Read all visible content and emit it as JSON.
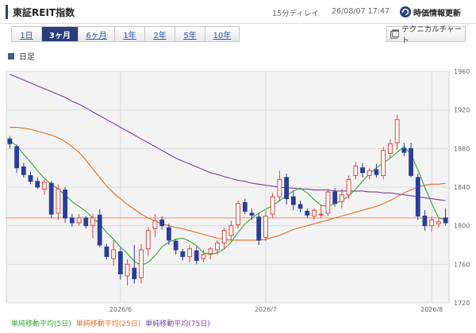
{
  "header": {
    "title": "東証REIT指数",
    "delay": "15分ディレイ",
    "datetime": "26/08/07 17:47",
    "refresh_label": "時価情報更新"
  },
  "range_tabs": [
    {
      "label": "1日",
      "active": false
    },
    {
      "label": "3ヶ月",
      "active": true
    },
    {
      "label": "6ヶ月",
      "active": false
    },
    {
      "label": "1年",
      "active": false
    },
    {
      "label": "2年",
      "active": false
    },
    {
      "label": "5年",
      "active": false
    },
    {
      "label": "10年",
      "active": false
    }
  ],
  "tech_chart_label": "テクニカルチャート",
  "period_label": "日足",
  "moving_average_legend": [
    {
      "label": "単純移動平均(5日)",
      "color": "#33aa33"
    },
    {
      "label": "単純移動平均(25日)",
      "color": "#e07020"
    },
    {
      "label": "単純移動平均(75日)",
      "color": "#7a3d9e"
    }
  ],
  "chart_data": {
    "type": "candlestick",
    "ylim": [
      1720,
      1960
    ],
    "y_ticks": [
      1720,
      1760,
      1800,
      1840,
      1880,
      1920,
      1960
    ],
    "x_labels": [
      {
        "label": "2026/6",
        "index": 16
      },
      {
        "label": "2026/7",
        "index": 37
      },
      {
        "label": "2026/8",
        "index": 61
      }
    ],
    "reference_line": 1808,
    "candles": [
      [
        1890,
        1893,
        1880,
        1885
      ],
      [
        1882,
        1884,
        1855,
        1860
      ],
      [
        1861,
        1865,
        1850,
        1853
      ],
      [
        1852,
        1856,
        1843,
        1846
      ],
      [
        1846,
        1850,
        1838,
        1840
      ],
      [
        1838,
        1848,
        1832,
        1845
      ],
      [
        1844,
        1846,
        1808,
        1812
      ],
      [
        1813,
        1843,
        1806,
        1838
      ],
      [
        1837,
        1840,
        1803,
        1808
      ],
      [
        1808,
        1812,
        1799,
        1803
      ],
      [
        1803,
        1812,
        1800,
        1808
      ],
      [
        1808,
        1810,
        1797,
        1800
      ],
      [
        1800,
        1812,
        1787,
        1808
      ],
      [
        1811,
        1817,
        1778,
        1780
      ],
      [
        1778,
        1781,
        1765,
        1768
      ],
      [
        1766,
        1785,
        1758,
        1775
      ],
      [
        1773,
        1777,
        1744,
        1750
      ],
      [
        1748,
        1765,
        1738,
        1760
      ],
      [
        1756,
        1780,
        1740,
        1745
      ],
      [
        1746,
        1781,
        1740,
        1775
      ],
      [
        1776,
        1799,
        1769,
        1795
      ],
      [
        1797,
        1812,
        1788,
        1805
      ],
      [
        1806,
        1810,
        1796,
        1800
      ],
      [
        1798,
        1802,
        1780,
        1785
      ],
      [
        1784,
        1786,
        1770,
        1775
      ],
      [
        1773,
        1776,
        1764,
        1768
      ],
      [
        1768,
        1780,
        1762,
        1776
      ],
      [
        1774,
        1778,
        1760,
        1764
      ],
      [
        1766,
        1775,
        1762,
        1770
      ],
      [
        1771,
        1778,
        1765,
        1776
      ],
      [
        1775,
        1785,
        1770,
        1782
      ],
      [
        1782,
        1798,
        1775,
        1795
      ],
      [
        1790,
        1805,
        1785,
        1800
      ],
      [
        1801,
        1826,
        1797,
        1823
      ],
      [
        1824,
        1828,
        1812,
        1815
      ],
      [
        1813,
        1818,
        1806,
        1811
      ],
      [
        1809,
        1813,
        1780,
        1785
      ],
      [
        1788,
        1815,
        1784,
        1810
      ],
      [
        1812,
        1834,
        1808,
        1830
      ],
      [
        1830,
        1857,
        1825,
        1848
      ],
      [
        1850,
        1854,
        1822,
        1828
      ],
      [
        1830,
        1836,
        1816,
        1822
      ],
      [
        1822,
        1826,
        1814,
        1818
      ],
      [
        1815,
        1818,
        1808,
        1811
      ],
      [
        1810,
        1818,
        1806,
        1816
      ],
      [
        1812,
        1822,
        1808,
        1812
      ],
      [
        1813,
        1838,
        1810,
        1835
      ],
      [
        1835,
        1839,
        1820,
        1823
      ],
      [
        1825,
        1838,
        1818,
        1832
      ],
      [
        1832,
        1852,
        1828,
        1848
      ],
      [
        1852,
        1866,
        1848,
        1862
      ],
      [
        1860,
        1865,
        1850,
        1855
      ],
      [
        1852,
        1860,
        1848,
        1857
      ],
      [
        1858,
        1864,
        1850,
        1853
      ],
      [
        1852,
        1882,
        1848,
        1878
      ],
      [
        1875,
        1890,
        1870,
        1885
      ],
      [
        1886,
        1915,
        1878,
        1910
      ],
      [
        1880,
        1886,
        1872,
        1876
      ],
      [
        1880,
        1886,
        1850,
        1852
      ],
      [
        1850,
        1854,
        1806,
        1810
      ],
      [
        1810,
        1816,
        1795,
        1800
      ],
      [
        1800,
        1810,
        1794,
        1806
      ],
      [
        1802,
        1808,
        1798,
        1804
      ],
      [
        1808,
        1818,
        1800,
        1803
      ]
    ],
    "ma5": [
      1888,
      1883,
      1874,
      1866,
      1857,
      1849,
      1843,
      1838,
      1832,
      1825,
      1820,
      1815,
      1808,
      1802,
      1793,
      1786,
      1778,
      1771,
      1763,
      1759,
      1762,
      1769,
      1778,
      1783,
      1786,
      1787,
      1784,
      1779,
      1772,
      1770,
      1772,
      1776,
      1783,
      1793,
      1802,
      1808,
      1813,
      1817,
      1821,
      1826,
      1831,
      1836,
      1839,
      1834,
      1827,
      1821,
      1820,
      1823,
      1826,
      1831,
      1838,
      1846,
      1854,
      1860,
      1865,
      1870,
      1876,
      1882,
      1874,
      1858,
      1840,
      1823,
      1808,
      1806
    ],
    "ma25": [
      1902,
      1902,
      1901,
      1900,
      1898,
      1896,
      1894,
      1891,
      1887,
      1882,
      1876,
      1868,
      1859,
      1850,
      1841,
      1834,
      1828,
      1822,
      1817,
      1812,
      1808,
      1805,
      1802,
      1800,
      1798,
      1797,
      1795,
      1793,
      1791,
      1789,
      1787,
      1786,
      1785,
      1785,
      1785,
      1785,
      1785,
      1786,
      1788,
      1790,
      1793,
      1796,
      1798,
      1800,
      1802,
      1804,
      1806,
      1808,
      1810,
      1812,
      1814,
      1816,
      1818,
      1820,
      1823,
      1826,
      1830,
      1834,
      1837,
      1840,
      1842,
      1843,
      1843,
      1844
    ],
    "ma75": [
      1957,
      1954,
      1951,
      1948,
      1945,
      1942,
      1939,
      1936,
      1933,
      1929,
      1926,
      1922,
      1918,
      1914,
      1910,
      1906,
      1902,
      1898,
      1894,
      1890,
      1886,
      1882,
      1878,
      1874,
      1870,
      1867,
      1864,
      1861,
      1858,
      1855,
      1853,
      1851,
      1849,
      1847,
      1846,
      1844,
      1843,
      1842,
      1841,
      1840,
      1839,
      1839,
      1838,
      1838,
      1837,
      1837,
      1837,
      1836,
      1836,
      1836,
      1836,
      1836,
      1835,
      1835,
      1834,
      1834,
      1833,
      1832,
      1831,
      1830,
      1829,
      1828,
      1827,
      1826
    ]
  }
}
